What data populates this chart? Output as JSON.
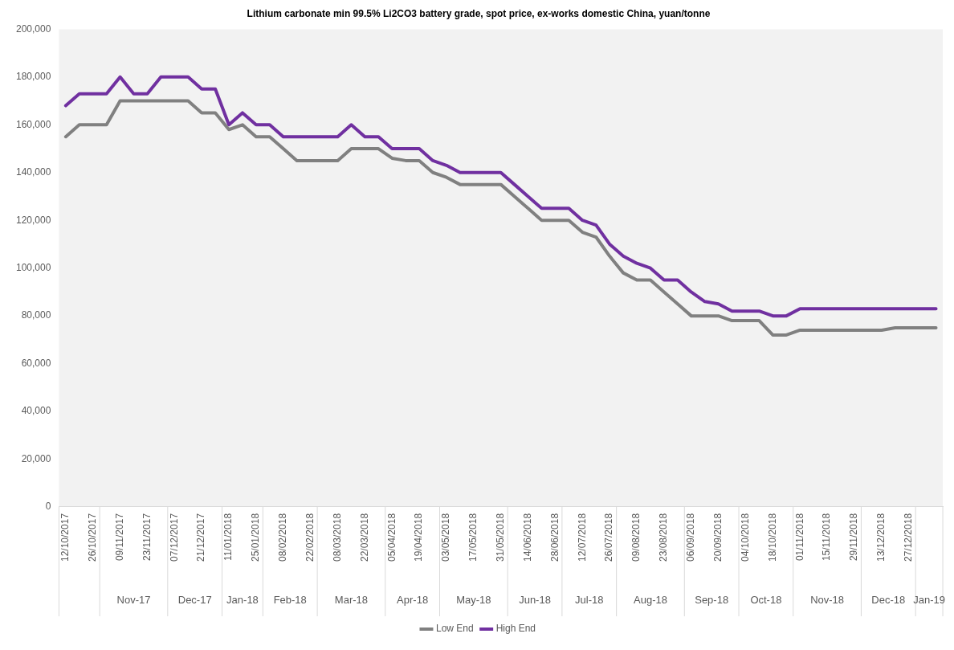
{
  "chart_data": {
    "type": "line",
    "title": "Lithium carbonate min 99.5% Li2CO3 battery grade, spot price, ex-works domestic China, yuan/tonne",
    "categories": [
      "12/10/2017",
      null,
      "26/10/2017",
      null,
      "09/11/2017",
      null,
      "23/11/2017",
      null,
      "07/12/2017",
      null,
      "21/12/2017",
      null,
      "11/01/2018",
      null,
      "25/01/2018",
      null,
      "08/02/2018",
      null,
      "22/02/2018",
      null,
      "08/03/2018",
      null,
      "22/03/2018",
      null,
      "05/04/2018",
      null,
      "19/04/2018",
      null,
      "03/05/2018",
      null,
      "17/05/2018",
      null,
      "31/05/2018",
      null,
      "14/06/2018",
      null,
      "28/06/2018",
      null,
      "12/07/2018",
      null,
      "26/07/2018",
      null,
      "09/08/2018",
      null,
      "23/08/2018",
      null,
      "06/09/2018",
      null,
      "20/09/2018",
      null,
      "04/10/2018",
      null,
      "18/10/2018",
      null,
      "01/11/2018",
      null,
      "15/11/2018",
      null,
      "29/11/2018",
      null,
      "13/12/2018",
      null,
      "27/12/2018",
      null,
      null
    ],
    "series": [
      {
        "name": "Low End",
        "color": "#808080",
        "values": [
          155000,
          160000,
          160000,
          160000,
          170000,
          170000,
          170000,
          170000,
          170000,
          170000,
          165000,
          165000,
          158000,
          160000,
          155000,
          155000,
          150000,
          145000,
          145000,
          145000,
          145000,
          150000,
          150000,
          150000,
          146000,
          145000,
          145000,
          140000,
          138000,
          135000,
          135000,
          135000,
          135000,
          130000,
          125000,
          120000,
          120000,
          120000,
          115000,
          113000,
          105000,
          98000,
          95000,
          95000,
          90000,
          85000,
          80000,
          80000,
          80000,
          78000,
          78000,
          78000,
          72000,
          72000,
          74000,
          74000,
          74000,
          74000,
          74000,
          74000,
          74000,
          75000,
          75000,
          75000,
          75000
        ]
      },
      {
        "name": "High End",
        "color": "#7030a0",
        "values": [
          168000,
          173000,
          173000,
          173000,
          180000,
          173000,
          173000,
          180000,
          180000,
          180000,
          175000,
          175000,
          160000,
          165000,
          160000,
          160000,
          155000,
          155000,
          155000,
          155000,
          155000,
          160000,
          155000,
          155000,
          150000,
          150000,
          150000,
          145000,
          143000,
          140000,
          140000,
          140000,
          140000,
          135000,
          130000,
          125000,
          125000,
          125000,
          120000,
          118000,
          110000,
          105000,
          102000,
          100000,
          95000,
          95000,
          90000,
          86000,
          85000,
          82000,
          82000,
          82000,
          80000,
          80000,
          83000,
          83000,
          83000,
          83000,
          83000,
          83000,
          83000,
          83000,
          83000,
          83000,
          83000
        ]
      }
    ],
    "ylim": [
      0,
      200000
    ],
    "yticks": [
      0,
      {
        "value": 20000,
        "label": "20,000"
      },
      {
        "value": 40000,
        "label": "40,000"
      },
      {
        "value": 60000,
        "label": "60,000"
      },
      {
        "value": 80000,
        "label": "80,000"
      },
      {
        "value": 100000,
        "label": "100,000"
      },
      {
        "value": 120000,
        "label": "120,000"
      },
      {
        "value": 140000,
        "label": "140,000"
      },
      {
        "value": 160000,
        "label": "160,000"
      },
      {
        "value": 180000,
        "label": "180,000"
      },
      {
        "value": 200000,
        "label": "200,000"
      }
    ],
    "legend": "bottom",
    "marker": "none",
    "line_style": "solid",
    "annotations": [
      "Nov-17",
      "Dec-17",
      "Jan-18",
      "Feb-18",
      "Mar-18",
      "Apr-18",
      "May-18",
      "Jun-18",
      "Jul-18",
      "Aug-18",
      "Sep-18",
      "Oct-18",
      "Nov-18",
      "Dec-18",
      "Jan-19"
    ]
  }
}
